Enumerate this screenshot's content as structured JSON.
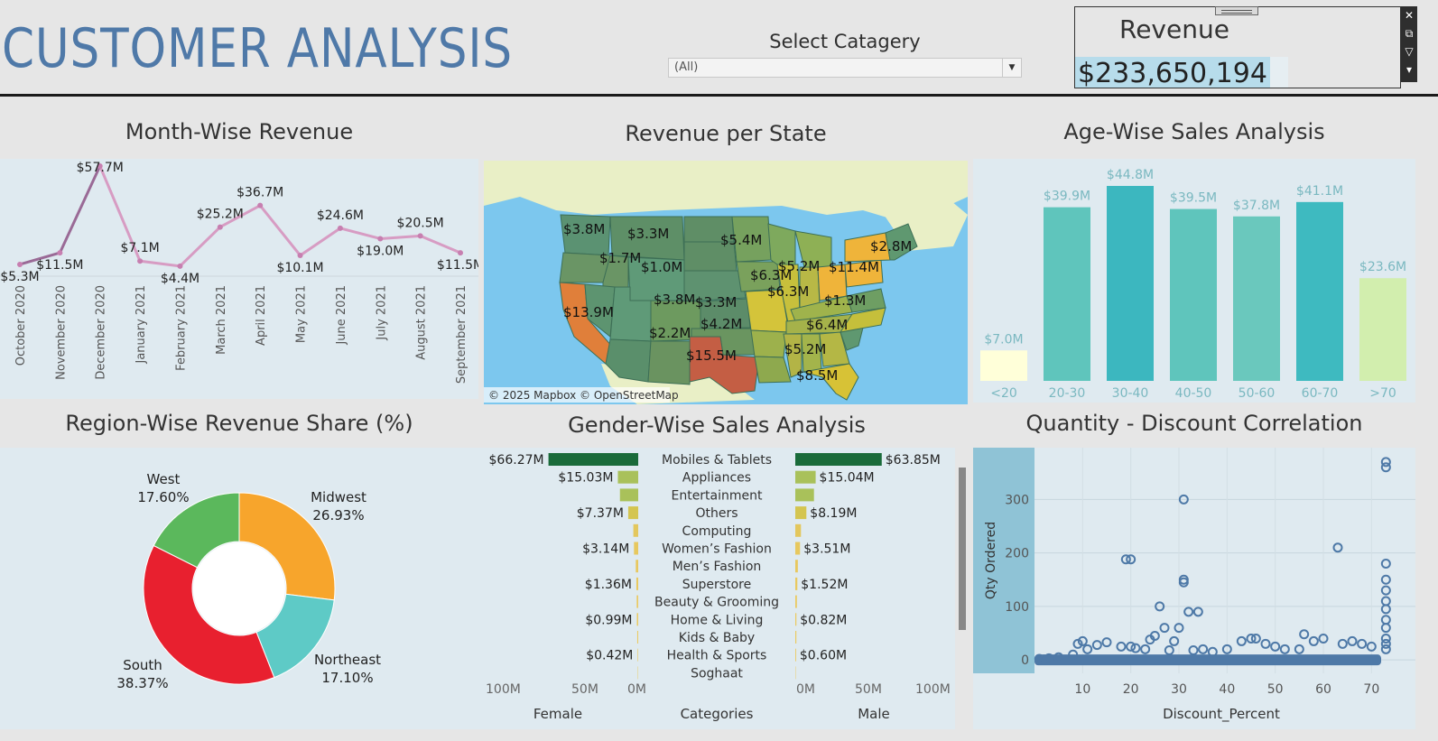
{
  "header": {
    "title": "CUSTOMER ANALYSIS",
    "filter_label": "Select Catagery",
    "filter_value": "(All)",
    "revenue_label": "Revenue",
    "revenue_value": "$233,650,194"
  },
  "titles": {
    "month": "Month-Wise Revenue",
    "state": "Revenue per State",
    "age": "Age-Wise Sales Analysis",
    "region": "Region-Wise Revenue Share (%)",
    "gender": "Gender-Wise Sales Analysis",
    "quantity": "Quantity - Discount Correlation"
  },
  "map_attribution": "© 2025 Mapbox © OpenStreetMap",
  "chart_data": [
    {
      "type": "line",
      "title": "Month-Wise Revenue",
      "categories": [
        "October 2020",
        "November 2020",
        "December 2020",
        "January 2021",
        "February 2021",
        "March 2021",
        "April 2021",
        "May 2021",
        "June 2021",
        "July 2021",
        "August 2021",
        "September 2021"
      ],
      "values": [
        5.3,
        11.5,
        57.7,
        7.1,
        4.4,
        25.2,
        36.7,
        10.1,
        24.6,
        19.0,
        20.5,
        11.5
      ],
      "labels": [
        "$5.3M",
        "$11.5M",
        "$57.7M",
        "$7.1M",
        "$4.4M",
        "$25.2M",
        "$36.7M",
        "$10.1M",
        "$24.6M",
        "$19.0M",
        "$20.5M",
        "$11.5M"
      ],
      "unit": "$M"
    },
    {
      "type": "map",
      "title": "Revenue per State",
      "labels": [
        "$3.8M",
        "$3.3M",
        "$1.7M",
        "$1.0M",
        "$5.4M",
        "$6.3M",
        "$5.2M",
        "$11.4M",
        "$2.8M",
        "$6.3M",
        "$1.3M",
        "$13.9M",
        "$3.8M",
        "$3.3M",
        "$4.2M",
        "$2.2M",
        "$6.4M",
        "$5.2M",
        "$15.5M",
        "$8.5M"
      ]
    },
    {
      "type": "bar",
      "title": "Age-Wise Sales Analysis",
      "categories": [
        "<20",
        "20-30",
        "30-40",
        "40-50",
        "50-60",
        "60-70",
        ">70"
      ],
      "values": [
        7.0,
        39.9,
        44.8,
        39.5,
        37.8,
        41.1,
        23.6
      ],
      "labels": [
        "$7.0M",
        "$39.9M",
        "$44.8M",
        "$39.5M",
        "$37.8M",
        "$41.1M",
        "$23.6M"
      ],
      "colors": [
        "#ffffd9",
        "#5fc5bc",
        "#3cb7bf",
        "#5fc5bc",
        "#6ac8bd",
        "#3ebac0",
        "#d2eeae"
      ]
    },
    {
      "type": "pie",
      "title": "Region-Wise Revenue Share (%)",
      "slices": [
        {
          "name": "Midwest",
          "value": 26.93,
          "label": "26.93%",
          "color": "#f7a52c"
        },
        {
          "name": "Northeast",
          "value": 17.1,
          "label": "17.10%",
          "color": "#5ecac6"
        },
        {
          "name": "South",
          "value": 38.37,
          "label": "38.37%",
          "color": "#e8202f"
        },
        {
          "name": "West",
          "value": 17.6,
          "label": "17.60%",
          "color": "#5bb85c"
        }
      ]
    },
    {
      "type": "bar",
      "title": "Gender-Wise Sales Analysis",
      "categories": [
        "Mobiles & Tablets",
        "Appliances",
        "Entertainment",
        "Others",
        "Computing",
        "Women’s Fashion",
        "Men’s Fashion",
        "Superstore",
        "Beauty & Grooming",
        "Home & Living",
        "Kids & Baby",
        "Health & Sports",
        "Soghaat"
      ],
      "series": [
        {
          "name": "Female",
          "values": [
            66.27,
            15.03,
            13.5,
            7.37,
            3.6,
            3.14,
            1.8,
            1.36,
            1.1,
            0.99,
            0.7,
            0.42,
            0.3
          ],
          "labels": [
            "$66.27M",
            "$15.03M",
            "",
            "$7.37M",
            "",
            "$3.14M",
            "",
            "$1.36M",
            "",
            "$0.99M",
            "",
            "$0.42M",
            ""
          ]
        },
        {
          "name": "Male",
          "values": [
            63.85,
            15.04,
            13.8,
            8.19,
            4.2,
            3.51,
            1.9,
            1.52,
            1.2,
            0.82,
            0.8,
            0.6,
            0.3
          ],
          "labels": [
            "$63.85M",
            "$15.04M",
            "",
            "$8.19M",
            "",
            "$3.51M",
            "",
            "$1.52M",
            "",
            "$0.82M",
            "",
            "$0.60M",
            ""
          ]
        }
      ],
      "axis_ticks_female": [
        "100M",
        "50M",
        "0M"
      ],
      "axis_ticks_male": [
        "0M",
        "50M",
        "100M"
      ],
      "xlabel_female": "Female",
      "xlabel_center": "Categories",
      "xlabel_male": "Male",
      "xlim": [
        0,
        100
      ]
    },
    {
      "type": "scatter",
      "title": "Quantity - Discount Correlation",
      "xlabel": "Discount_Percent",
      "ylabel": "Qty Ordered",
      "xticks": [
        10,
        20,
        30,
        40,
        50,
        60,
        70
      ],
      "yticks": [
        0,
        100,
        200,
        300
      ],
      "xlim": [
        0,
        78
      ],
      "ylim": [
        -25,
        390
      ],
      "points": [
        [
          1,
          2
        ],
        [
          2,
          1
        ],
        [
          3,
          3
        ],
        [
          5,
          5
        ],
        [
          8,
          10
        ],
        [
          9,
          30
        ],
        [
          10,
          35
        ],
        [
          11,
          20
        ],
        [
          13,
          28
        ],
        [
          15,
          33
        ],
        [
          18,
          25
        ],
        [
          19,
          188
        ],
        [
          20,
          188
        ],
        [
          20,
          25
        ],
        [
          21,
          22
        ],
        [
          23,
          20
        ],
        [
          24,
          38
        ],
        [
          25,
          45
        ],
        [
          26,
          100
        ],
        [
          27,
          60
        ],
        [
          28,
          18
        ],
        [
          29,
          35
        ],
        [
          30,
          60
        ],
        [
          31,
          150
        ],
        [
          31,
          145
        ],
        [
          31,
          300
        ],
        [
          32,
          90
        ],
        [
          33,
          18
        ],
        [
          34,
          90
        ],
        [
          35,
          20
        ],
        [
          37,
          15
        ],
        [
          40,
          20
        ],
        [
          43,
          35
        ],
        [
          45,
          40
        ],
        [
          46,
          40
        ],
        [
          48,
          30
        ],
        [
          50,
          25
        ],
        [
          52,
          20
        ],
        [
          55,
          20
        ],
        [
          56,
          48
        ],
        [
          58,
          35
        ],
        [
          60,
          40
        ],
        [
          63,
          210
        ],
        [
          64,
          30
        ],
        [
          66,
          35
        ],
        [
          68,
          30
        ],
        [
          70,
          25
        ],
        [
          73,
          370
        ],
        [
          73,
          360
        ],
        [
          73,
          180
        ],
        [
          73,
          150
        ],
        [
          73,
          130
        ],
        [
          73,
          110
        ],
        [
          73,
          95
        ],
        [
          73,
          75
        ],
        [
          73,
          60
        ],
        [
          73,
          40
        ],
        [
          73,
          30
        ],
        [
          73,
          20
        ]
      ]
    }
  ]
}
